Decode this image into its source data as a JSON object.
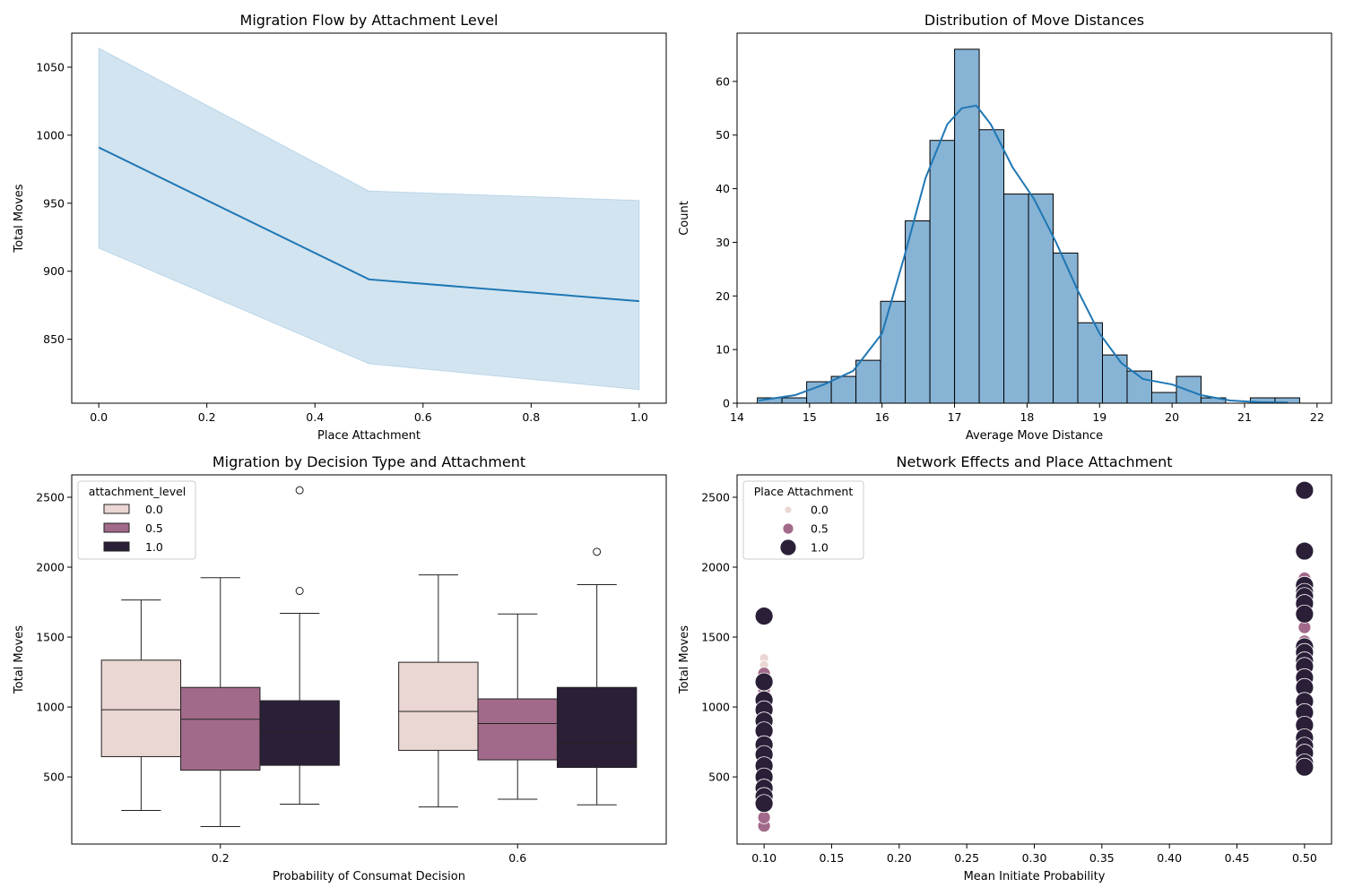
{
  "colors": {
    "line_blue": "#1f77b4",
    "band_blue": "#1f77b4",
    "hist_fill": "#87b3d5",
    "att_0": "#ead6d3",
    "att_05": "#a26a8a",
    "att_1": "#2b1f38"
  },
  "chart_data": [
    {
      "type": "line",
      "title": "Migration Flow by Attachment Level",
      "xlabel": "Place Attachment",
      "ylabel": "Total Moves",
      "x": [
        0.0,
        0.5,
        1.0
      ],
      "y": [
        991,
        894,
        878
      ],
      "ci_low": [
        917,
        832,
        813
      ],
      "ci_high": [
        1064,
        959,
        952
      ],
      "xlim": [
        -0.05,
        1.05
      ],
      "ylim": [
        803,
        1075
      ],
      "xticks": [
        0.0,
        0.2,
        0.4,
        0.6,
        0.8,
        1.0
      ],
      "xtick_labels": [
        "0.0",
        "0.2",
        "0.4",
        "0.6",
        "0.8",
        "1.0"
      ],
      "yticks": [
        850,
        900,
        950,
        1000,
        1050
      ],
      "ytick_labels": [
        "850",
        "900",
        "950",
        "1000",
        "1050"
      ]
    },
    {
      "type": "bar",
      "title": "Distribution of Move Distances",
      "xlabel": "Average Move Distance",
      "ylabel": "Count",
      "bin_edges": [
        14.28,
        14.62,
        14.96,
        15.3,
        15.64,
        15.98,
        16.32,
        16.66,
        17.0,
        17.34,
        17.68,
        18.02,
        18.36,
        18.7,
        19.04,
        19.38,
        19.72,
        20.06,
        20.4,
        20.74,
        21.08,
        21.42,
        21.76
      ],
      "counts": [
        1,
        1,
        4,
        5,
        8,
        19,
        34,
        49,
        66,
        51,
        39,
        39,
        28,
        15,
        9,
        6,
        2,
        5,
        1,
        0,
        1,
        1
      ],
      "kde_x": [
        14.3,
        14.8,
        15.2,
        15.6,
        16.0,
        16.3,
        16.6,
        16.9,
        17.1,
        17.3,
        17.5,
        17.8,
        18.1,
        18.4,
        18.7,
        19.0,
        19.3,
        19.6,
        20.0,
        20.4,
        20.8,
        21.2,
        21.6
      ],
      "kde_y": [
        0.5,
        1.5,
        3.5,
        6,
        13,
        27,
        42,
        52,
        55,
        55.5,
        52,
        44,
        38,
        30,
        21,
        13,
        7.5,
        4.5,
        3.5,
        1.5,
        0.5,
        0.2,
        0.1
      ],
      "xlim": [
        14.0,
        22.2
      ],
      "ylim": [
        0,
        69
      ],
      "xticks": [
        14,
        15,
        16,
        17,
        18,
        19,
        20,
        21,
        22
      ],
      "xtick_labels": [
        "14",
        "15",
        "16",
        "17",
        "18",
        "19",
        "20",
        "21",
        "22"
      ],
      "yticks": [
        0,
        10,
        20,
        30,
        40,
        50,
        60
      ],
      "ytick_labels": [
        "0",
        "10",
        "20",
        "30",
        "40",
        "50",
        "60"
      ]
    },
    {
      "type": "box",
      "title": "Migration by Decision Type and Attachment",
      "xlabel": "Probability of Consumat Decision",
      "ylabel": "Total Moves",
      "categories": [
        "0.2",
        "0.6"
      ],
      "legend_title": "attachment_level",
      "legend_position": "upper-left",
      "groups": [
        {
          "name": "0.0",
          "color_key": "att_0",
          "boxes": [
            {
              "whislo": 260,
              "q1": 645,
              "med": 980,
              "q3": 1335,
              "whishi": 1765,
              "fliers": []
            },
            {
              "whislo": 285,
              "q1": 690,
              "med": 968,
              "q3": 1320,
              "whishi": 1945,
              "fliers": []
            }
          ]
        },
        {
          "name": "0.5",
          "color_key": "att_05",
          "boxes": [
            {
              "whislo": 145,
              "q1": 548,
              "med": 912,
              "q3": 1140,
              "whishi": 1925,
              "fliers": []
            },
            {
              "whislo": 340,
              "q1": 622,
              "med": 882,
              "q3": 1058,
              "whishi": 1665,
              "fliers": []
            }
          ]
        },
        {
          "name": "1.0",
          "color_key": "att_1",
          "boxes": [
            {
              "whislo": 305,
              "q1": 583,
              "med": 825,
              "q3": 1045,
              "whishi": 1670,
              "fliers": [
                1830,
                2550
              ]
            },
            {
              "whislo": 300,
              "q1": 568,
              "med": 742,
              "q3": 1140,
              "whishi": 1875,
              "fliers": [
                2110
              ]
            }
          ]
        }
      ],
      "ylim": [
        20,
        2660
      ],
      "yticks": [
        500,
        1000,
        1500,
        2000,
        2500
      ],
      "ytick_labels": [
        "500",
        "1000",
        "1500",
        "2000",
        "2500"
      ]
    },
    {
      "type": "scatter",
      "title": "Network Effects and Place Attachment",
      "xlabel": "Mean Initiate Probability",
      "ylabel": "Total Moves",
      "legend_title": "Place Attachment",
      "legend_position": "upper-left",
      "legend_entries": [
        "0.0",
        "0.5",
        "1.0"
      ],
      "series": [
        {
          "name": "0.0",
          "color_key": "att_0",
          "size": 5,
          "points": [
            [
              0.1,
              1350
            ],
            [
              0.1,
              1300
            ],
            [
              0.1,
              1240
            ],
            [
              0.1,
              1190
            ],
            [
              0.1,
              1130
            ],
            [
              0.1,
              1070
            ],
            [
              0.1,
              1010
            ],
            [
              0.1,
              950
            ],
            [
              0.1,
              880
            ],
            [
              0.1,
              820
            ],
            [
              0.1,
              760
            ],
            [
              0.1,
              700
            ],
            [
              0.1,
              640
            ],
            [
              0.1,
              580
            ],
            [
              0.1,
              520
            ],
            [
              0.1,
              460
            ],
            [
              0.1,
              400
            ],
            [
              0.1,
              340
            ],
            [
              0.5,
              1360
            ],
            [
              0.5,
              1280
            ],
            [
              0.5,
              1200
            ],
            [
              0.5,
              1120
            ],
            [
              0.5,
              1040
            ],
            [
              0.5,
              960
            ],
            [
              0.5,
              880
            ],
            [
              0.5,
              800
            ],
            [
              0.5,
              720
            ],
            [
              0.5,
              640
            ],
            [
              0.5,
              580
            ]
          ]
        },
        {
          "name": "0.5",
          "color_key": "att_05",
          "size": 7,
          "points": [
            [
              0.1,
              150
            ],
            [
              0.1,
              210
            ],
            [
              0.1,
              1240
            ],
            [
              0.1,
              1120
            ],
            [
              0.1,
              1020
            ],
            [
              0.1,
              930
            ],
            [
              0.1,
              850
            ],
            [
              0.1,
              770
            ],
            [
              0.1,
              690
            ],
            [
              0.1,
              610
            ],
            [
              0.1,
              530
            ],
            [
              0.1,
              450
            ],
            [
              0.1,
              380
            ],
            [
              0.1,
              290
            ],
            [
              0.5,
              1920
            ],
            [
              0.5,
              1570
            ],
            [
              0.5,
              1470
            ],
            [
              0.5,
              1350
            ],
            [
              0.5,
              1230
            ],
            [
              0.5,
              1110
            ],
            [
              0.5,
              990
            ],
            [
              0.5,
              900
            ],
            [
              0.5,
              810
            ],
            [
              0.5,
              720
            ],
            [
              0.5,
              620
            ],
            [
              0.5,
              550
            ]
          ]
        },
        {
          "name": "1.0",
          "color_key": "att_1",
          "size": 10,
          "points": [
            [
              0.1,
              1650
            ],
            [
              0.1,
              1180
            ],
            [
              0.1,
              1050
            ],
            [
              0.1,
              980
            ],
            [
              0.1,
              900
            ],
            [
              0.1,
              830
            ],
            [
              0.1,
              730
            ],
            [
              0.1,
              660
            ],
            [
              0.1,
              580
            ],
            [
              0.1,
              500
            ],
            [
              0.1,
              420
            ],
            [
              0.1,
              360
            ],
            [
              0.1,
              310
            ],
            [
              0.5,
              2550
            ],
            [
              0.5,
              2115
            ],
            [
              0.5,
              1870
            ],
            [
              0.5,
              1820
            ],
            [
              0.5,
              1790
            ],
            [
              0.5,
              1740
            ],
            [
              0.5,
              1665
            ],
            [
              0.5,
              1430
            ],
            [
              0.5,
              1390
            ],
            [
              0.5,
              1330
            ],
            [
              0.5,
              1290
            ],
            [
              0.5,
              1210
            ],
            [
              0.5,
              1140
            ],
            [
              0.5,
              1040
            ],
            [
              0.5,
              960
            ],
            [
              0.5,
              870
            ],
            [
              0.5,
              780
            ],
            [
              0.5,
              720
            ],
            [
              0.5,
              670
            ],
            [
              0.5,
              600
            ],
            [
              0.5,
              570
            ]
          ]
        }
      ],
      "xlim": [
        0.08,
        0.52
      ],
      "ylim": [
        20,
        2660
      ],
      "xticks": [
        0.1,
        0.15,
        0.2,
        0.25,
        0.3,
        0.35,
        0.4,
        0.45,
        0.5
      ],
      "xtick_labels": [
        "0.10",
        "0.15",
        "0.20",
        "0.25",
        "0.30",
        "0.35",
        "0.40",
        "0.45",
        "0.50"
      ],
      "yticks": [
        500,
        1000,
        1500,
        2000,
        2500
      ],
      "ytick_labels": [
        "500",
        "1000",
        "1500",
        "2000",
        "2500"
      ]
    }
  ]
}
